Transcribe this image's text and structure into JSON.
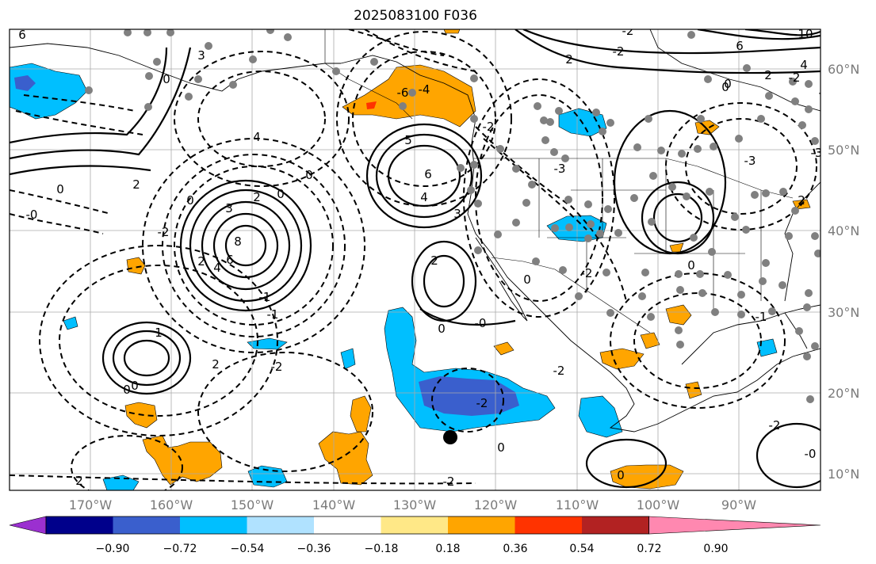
{
  "title": "2025083100 F036",
  "map": {
    "longitude_labels": [
      "170°W",
      "160°W",
      "150°W",
      "140°W",
      "130°W",
      "120°W",
      "110°W",
      "100°W",
      "90°W"
    ],
    "latitude_labels": [
      "60°N",
      "50°N",
      "40°N",
      "30°N",
      "20°N",
      "10°N"
    ],
    "contour_labels": [
      "6",
      "3",
      "0",
      "4",
      "2",
      "0",
      "-0",
      "-2",
      "0",
      "2",
      "3",
      "8",
      "6",
      "4",
      "2",
      "-1",
      "-1",
      "-2",
      "2",
      "0",
      "0",
      "-4",
      "-6",
      "5",
      "6",
      "4",
      "3",
      "-3",
      "-2",
      "2",
      "0",
      "-0",
      "-2",
      "0",
      "-2",
      "-2",
      "-2",
      "2",
      "0",
      "1",
      "-2",
      "-3",
      "-2",
      "0",
      "-0",
      "-2",
      "0",
      "-1",
      "0",
      "-3",
      "-3",
      "10",
      "6",
      "4",
      "2",
      "0",
      "-2",
      "2",
      "2",
      "0",
      "0"
    ],
    "colors": {
      "negative_light": "#00bfff",
      "negative_mid": "#3a5fcd",
      "positive_light": "#ffe887",
      "positive_mid": "#ffa500",
      "positive_strong": "#ff3300",
      "grid": "#999999",
      "coast": "#000000",
      "marker": "#808080"
    }
  },
  "colorbar": {
    "tick_labels": [
      "−0.90",
      "−0.72",
      "−0.54",
      "−0.36",
      "−0.18",
      "0.18",
      "0.36",
      "0.54",
      "0.72",
      "0.90"
    ],
    "colors": [
      "#9b30d0",
      "#00008b",
      "#3a5fcd",
      "#00bfff",
      "#b0e2ff",
      "#ffffff",
      "#ffe887",
      "#ffa500",
      "#ff3300",
      "#b22222",
      "#ff88b0"
    ]
  }
}
